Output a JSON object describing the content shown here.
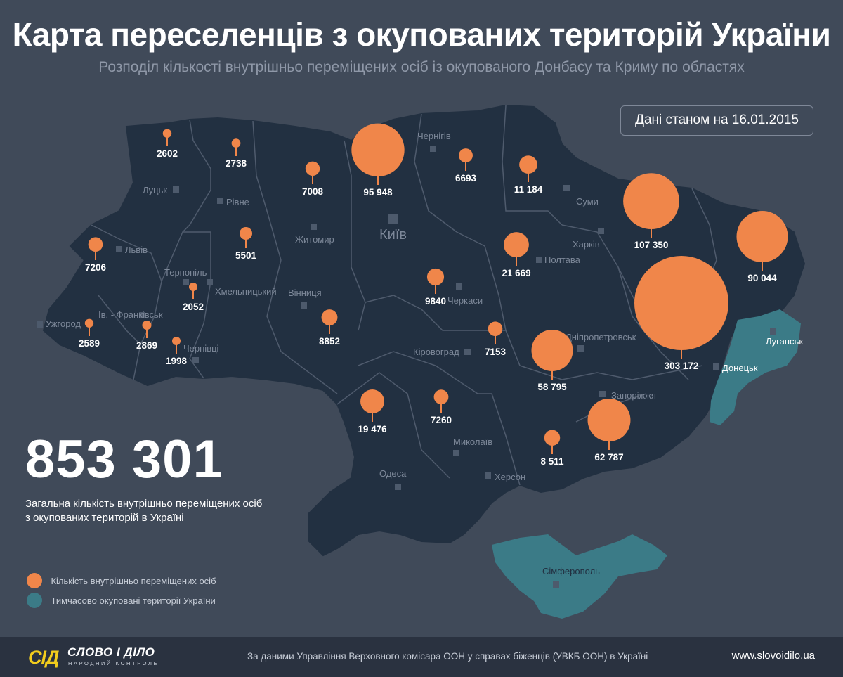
{
  "header": {
    "title": "Карта переселенців з окупованих територій України",
    "subtitle": "Розподіл кількості внутрішньо переміщених осіб із окупованого Донбасу та Криму по областях",
    "date_note": "Дані станом на 16.01.2015"
  },
  "colors": {
    "background": "#404a59",
    "map_fill": "#223041",
    "border": "#4f5b6d",
    "bubble": "#f0864a",
    "occupied": "#3b7b87",
    "city_marker": "#4d5a6c"
  },
  "cities": [
    {
      "name": "Луцьк"
    },
    {
      "name": "Рівне"
    },
    {
      "name": "Житомир"
    },
    {
      "name": "Київ"
    },
    {
      "name": "Чернігів"
    },
    {
      "name": "Суми"
    },
    {
      "name": "Харків"
    },
    {
      "name": "Полтава"
    },
    {
      "name": "Черкаси"
    },
    {
      "name": "Львів"
    },
    {
      "name": "Тернопіль"
    },
    {
      "name": "Хмельницький"
    },
    {
      "name": "Вінниця"
    },
    {
      "name": "Ужгород"
    },
    {
      "name": "Ів. - Франківськ"
    },
    {
      "name": "Чернівці"
    },
    {
      "name": "Кіровоград"
    },
    {
      "name": "Дніпропетровськ"
    },
    {
      "name": "Запоріжжя"
    },
    {
      "name": "Луганськ"
    },
    {
      "name": "Донецьк"
    },
    {
      "name": "Миколаїв"
    },
    {
      "name": "Херсон"
    },
    {
      "name": "Одеса"
    },
    {
      "name": "Сімферополь"
    }
  ],
  "regions": [
    {
      "region": "Волинська",
      "value": "2602",
      "count": 2602
    },
    {
      "region": "Рівненська",
      "value": "2738",
      "count": 2738
    },
    {
      "region": "Житомирська",
      "value": "7008",
      "count": 7008
    },
    {
      "region": "Київ",
      "value": "95 948",
      "count": 95948
    },
    {
      "region": "Чернігівська",
      "value": "6693",
      "count": 6693
    },
    {
      "region": "Сумська",
      "value": "11 184",
      "count": 11184
    },
    {
      "region": "Харківська",
      "value": "107 350",
      "count": 107350
    },
    {
      "region": "Луганська",
      "value": "90 044",
      "count": 90044
    },
    {
      "region": "Львівська",
      "value": "7206",
      "count": 7206
    },
    {
      "region": "Хмельницька",
      "value": "5501",
      "count": 5501
    },
    {
      "region": "Тернопільська",
      "value": "2052",
      "count": 2052
    },
    {
      "region": "Черкаська",
      "value": "9840",
      "count": 9840
    },
    {
      "region": "Полтавська",
      "value": "21 669",
      "count": 21669
    },
    {
      "region": "Донецька",
      "value": "303 172",
      "count": 303172
    },
    {
      "region": "Закарпатська",
      "value": "2589",
      "count": 2589
    },
    {
      "region": "Івано-Франківська",
      "value": "2869",
      "count": 2869
    },
    {
      "region": "Чернівецька",
      "value": "1998",
      "count": 1998
    },
    {
      "region": "Вінницька",
      "value": "8852",
      "count": 8852
    },
    {
      "region": "Кіровоградська",
      "value": "7153",
      "count": 7153
    },
    {
      "region": "Дніпропетровська",
      "value": "58 795",
      "count": 58795
    },
    {
      "region": "Одеська",
      "value": "19 476",
      "count": 19476
    },
    {
      "region": "Миколаївська",
      "value": "7260",
      "count": 7260
    },
    {
      "region": "Херсонська",
      "value": "8 511",
      "count": 8511
    },
    {
      "region": "Запорізька",
      "value": "62 787",
      "count": 62787
    }
  ],
  "summary": {
    "total": "853 301",
    "caption_line1": "Загальна кількість внутрішньо переміщених осіб",
    "caption_line2": "з окупованих територій в Україні"
  },
  "legend": [
    {
      "label": "Кількість внутрішньо переміщених осіб",
      "color": "#f0864a"
    },
    {
      "label": "Тимчасово окуповані території України",
      "color": "#3b7b87"
    }
  ],
  "footer": {
    "logo_mark": "СІД",
    "logo_name": "СЛОВО І ДІЛО",
    "logo_tag": "НАРОДНИЙ КОНТРОЛЬ",
    "source": "За даними  Управління Верховного комісара ООН у справах біженців (УВКБ ООН) в Україні",
    "site": "www.slovoidilo.ua"
  }
}
